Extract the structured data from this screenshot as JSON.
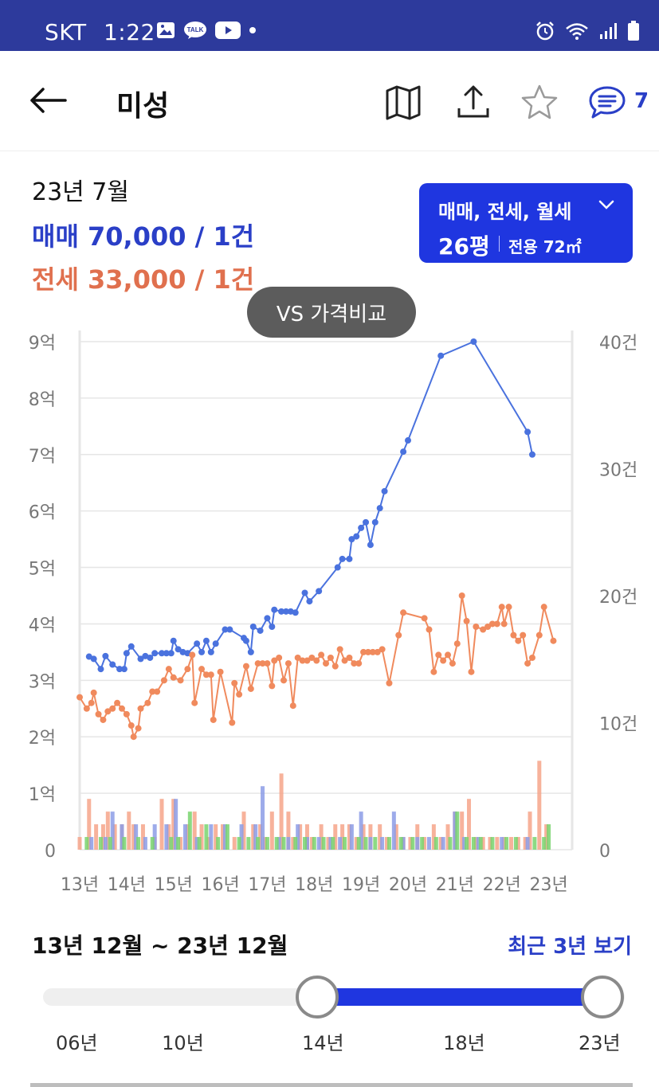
{
  "status_bar": {
    "carrier": "SKT",
    "time": "1:22"
  },
  "header": {
    "title": "미성",
    "comment_count": "7"
  },
  "summary": {
    "date": "23년 7월",
    "sale": "매매 70,000 / 1건",
    "lease": "전세 33,000 / 1건"
  },
  "type_selector": {
    "label": "매매, 전세, 월세",
    "size": "26평",
    "area": "전용 72㎡"
  },
  "vs_button": "VS 가격비교",
  "colors": {
    "sale": "#4a72de",
    "lease": "#f08a5d",
    "monthly": "#5cc85c",
    "accent": "#1f36e0",
    "statusbar": "#2d3a9c"
  },
  "chart_data": {
    "type": "line",
    "y_left_ticks": [
      "0",
      "1억",
      "2억",
      "3억",
      "4억",
      "5억",
      "6억",
      "7억",
      "8억",
      "9억"
    ],
    "y_right_ticks": [
      "0",
      "10건",
      "20건",
      "30건",
      "40건"
    ],
    "x_ticks": [
      "13년",
      "14년",
      "15년",
      "16년",
      "17년",
      "18년",
      "19년",
      "20년",
      "21년",
      "22년",
      "23년"
    ],
    "ylim_left": [
      0,
      90000
    ],
    "ylim_right": [
      0,
      40
    ],
    "xlim": [
      2013.0,
      2023.5
    ],
    "series": [
      {
        "name": "매매",
        "points": [
          [
            2013.2,
            34200
          ],
          [
            2013.3,
            33800
          ],
          [
            2013.45,
            32000
          ],
          [
            2013.55,
            34300
          ],
          [
            2013.7,
            32800
          ],
          [
            2013.85,
            32000
          ],
          [
            2013.95,
            32000
          ],
          [
            2014.0,
            34800
          ],
          [
            2014.1,
            36000
          ],
          [
            2014.3,
            33800
          ],
          [
            2014.4,
            34300
          ],
          [
            2014.5,
            34000
          ],
          [
            2014.6,
            34800
          ],
          [
            2014.75,
            34800
          ],
          [
            2014.85,
            34800
          ],
          [
            2014.95,
            34800
          ],
          [
            2015.0,
            37000
          ],
          [
            2015.1,
            35500
          ],
          [
            2015.2,
            35000
          ],
          [
            2015.3,
            34800
          ],
          [
            2015.5,
            36500
          ],
          [
            2015.6,
            35000
          ],
          [
            2015.7,
            37000
          ],
          [
            2015.8,
            35000
          ],
          [
            2015.9,
            36500
          ],
          [
            2016.1,
            39000
          ],
          [
            2016.2,
            39000
          ],
          [
            2016.5,
            37500
          ],
          [
            2016.55,
            37000
          ],
          [
            2016.65,
            35000
          ],
          [
            2016.7,
            39500
          ],
          [
            2016.85,
            38800
          ],
          [
            2017.0,
            41000
          ],
          [
            2017.1,
            39500
          ],
          [
            2017.15,
            42500
          ],
          [
            2017.3,
            42200
          ],
          [
            2017.4,
            42200
          ],
          [
            2017.5,
            42200
          ],
          [
            2017.6,
            42000
          ],
          [
            2017.8,
            45500
          ],
          [
            2017.9,
            44000
          ],
          [
            2018.1,
            45800
          ],
          [
            2018.5,
            50000
          ],
          [
            2018.6,
            51500
          ],
          [
            2018.75,
            51500
          ],
          [
            2018.8,
            55000
          ],
          [
            2018.9,
            55500
          ],
          [
            2019.0,
            57000
          ],
          [
            2019.1,
            58000
          ],
          [
            2019.2,
            54000
          ],
          [
            2019.3,
            58000
          ],
          [
            2019.4,
            60500
          ],
          [
            2019.5,
            63500
          ],
          [
            2019.9,
            70500
          ],
          [
            2020.0,
            72500
          ],
          [
            2020.7,
            87500
          ],
          [
            2021.4,
            90000
          ],
          [
            2022.55,
            74000
          ],
          [
            2022.65,
            70000
          ]
        ]
      },
      {
        "name": "전세",
        "points": [
          [
            2013.0,
            27000
          ],
          [
            2013.15,
            25000
          ],
          [
            2013.25,
            26000
          ],
          [
            2013.3,
            27800
          ],
          [
            2013.4,
            24000
          ],
          [
            2013.5,
            23000
          ],
          [
            2013.6,
            24500
          ],
          [
            2013.7,
            25000
          ],
          [
            2013.8,
            26000
          ],
          [
            2013.9,
            25000
          ],
          [
            2014.0,
            24000
          ],
          [
            2014.1,
            22000
          ],
          [
            2014.15,
            20000
          ],
          [
            2014.25,
            21500
          ],
          [
            2014.3,
            25000
          ],
          [
            2014.45,
            26000
          ],
          [
            2014.55,
            28000
          ],
          [
            2014.65,
            28000
          ],
          [
            2014.8,
            30000
          ],
          [
            2014.9,
            32000
          ],
          [
            2015.0,
            30500
          ],
          [
            2015.15,
            30000
          ],
          [
            2015.3,
            32000
          ],
          [
            2015.4,
            34500
          ],
          [
            2015.45,
            26000
          ],
          [
            2015.6,
            32000
          ],
          [
            2015.7,
            31000
          ],
          [
            2015.8,
            31000
          ],
          [
            2015.85,
            23000
          ],
          [
            2016.0,
            31500
          ],
          [
            2016.25,
            22500
          ],
          [
            2016.3,
            29500
          ],
          [
            2016.4,
            27500
          ],
          [
            2016.55,
            32500
          ],
          [
            2016.65,
            28500
          ],
          [
            2016.8,
            33000
          ],
          [
            2016.9,
            33000
          ],
          [
            2017.0,
            33000
          ],
          [
            2017.1,
            29000
          ],
          [
            2017.15,
            33500
          ],
          [
            2017.25,
            34000
          ],
          [
            2017.35,
            30000
          ],
          [
            2017.45,
            33000
          ],
          [
            2017.55,
            25500
          ],
          [
            2017.65,
            34000
          ],
          [
            2017.75,
            33500
          ],
          [
            2017.85,
            33500
          ],
          [
            2017.95,
            34000
          ],
          [
            2018.05,
            33500
          ],
          [
            2018.15,
            34500
          ],
          [
            2018.25,
            33000
          ],
          [
            2018.35,
            34000
          ],
          [
            2018.45,
            32500
          ],
          [
            2018.55,
            35500
          ],
          [
            2018.65,
            33500
          ],
          [
            2018.75,
            34000
          ],
          [
            2018.85,
            33000
          ],
          [
            2018.95,
            33000
          ],
          [
            2019.05,
            35000
          ],
          [
            2019.15,
            35000
          ],
          [
            2019.25,
            35000
          ],
          [
            2019.35,
            35000
          ],
          [
            2019.45,
            35500
          ],
          [
            2019.6,
            29500
          ],
          [
            2019.8,
            38000
          ],
          [
            2019.9,
            42000
          ],
          [
            2020.35,
            41000
          ],
          [
            2020.45,
            39000
          ],
          [
            2020.55,
            31500
          ],
          [
            2020.65,
            34500
          ],
          [
            2020.75,
            33500
          ],
          [
            2020.85,
            34500
          ],
          [
            2020.95,
            33000
          ],
          [
            2021.05,
            36500
          ],
          [
            2021.15,
            45000
          ],
          [
            2021.25,
            40500
          ],
          [
            2021.35,
            31500
          ],
          [
            2021.45,
            39500
          ],
          [
            2021.6,
            39000
          ],
          [
            2021.7,
            39500
          ],
          [
            2021.8,
            40000
          ],
          [
            2021.9,
            40000
          ],
          [
            2022.0,
            43000
          ],
          [
            2022.05,
            40000
          ],
          [
            2022.15,
            43000
          ],
          [
            2022.25,
            38000
          ],
          [
            2022.35,
            37000
          ],
          [
            2022.45,
            38000
          ],
          [
            2022.55,
            33000
          ],
          [
            2022.65,
            34000
          ],
          [
            2022.8,
            38000
          ],
          [
            2022.9,
            43000
          ],
          [
            2023.1,
            37000
          ]
        ]
      }
    ],
    "volume": {
      "name": "거래량",
      "lease_counts": [
        [
          2013.0,
          1
        ],
        [
          2013.2,
          4
        ],
        [
          2013.35,
          2
        ],
        [
          2013.5,
          2
        ],
        [
          2013.6,
          3
        ],
        [
          2013.75,
          2
        ],
        [
          2013.9,
          2
        ],
        [
          2014.05,
          3
        ],
        [
          2014.15,
          2
        ],
        [
          2014.35,
          2
        ],
        [
          2014.6,
          1
        ],
        [
          2014.75,
          4
        ],
        [
          2014.9,
          2
        ],
        [
          2015.0,
          4
        ],
        [
          2015.15,
          1
        ],
        [
          2015.3,
          2
        ],
        [
          2015.45,
          3
        ],
        [
          2015.6,
          2
        ],
        [
          2015.75,
          1
        ],
        [
          2015.9,
          2
        ],
        [
          2016.05,
          2
        ],
        [
          2016.3,
          1
        ],
        [
          2016.5,
          3
        ],
        [
          2016.7,
          2
        ],
        [
          2016.85,
          2
        ],
        [
          2016.95,
          1
        ],
        [
          2017.1,
          3
        ],
        [
          2017.3,
          6
        ],
        [
          2017.45,
          3
        ],
        [
          2017.55,
          1
        ],
        [
          2017.7,
          2
        ],
        [
          2017.85,
          2
        ],
        [
          2017.95,
          1
        ],
        [
          2018.15,
          2
        ],
        [
          2018.3,
          1
        ],
        [
          2018.45,
          2
        ],
        [
          2018.6,
          2
        ],
        [
          2018.75,
          2
        ],
        [
          2018.9,
          1
        ],
        [
          2019.05,
          2
        ],
        [
          2019.2,
          2
        ],
        [
          2019.4,
          2
        ],
        [
          2019.55,
          1
        ],
        [
          2019.75,
          2
        ],
        [
          2019.9,
          1
        ],
        [
          2020.05,
          1
        ],
        [
          2020.2,
          2
        ],
        [
          2020.35,
          1
        ],
        [
          2020.55,
          2
        ],
        [
          2020.7,
          1
        ],
        [
          2020.85,
          2
        ],
        [
          2021.0,
          3
        ],
        [
          2021.15,
          3
        ],
        [
          2021.3,
          4
        ],
        [
          2021.45,
          1
        ],
        [
          2021.6,
          1
        ],
        [
          2021.75,
          1
        ],
        [
          2021.9,
          1
        ],
        [
          2022.05,
          1
        ],
        [
          2022.2,
          1
        ],
        [
          2022.35,
          1
        ],
        [
          2022.5,
          1
        ],
        [
          2022.6,
          3
        ],
        [
          2022.8,
          7
        ],
        [
          2022.95,
          2
        ]
      ],
      "sale_counts": [
        [
          2013.25,
          1
        ],
        [
          2013.55,
          1
        ],
        [
          2013.7,
          3
        ],
        [
          2013.9,
          2
        ],
        [
          2014.2,
          2
        ],
        [
          2014.4,
          1
        ],
        [
          2014.6,
          2
        ],
        [
          2014.85,
          2
        ],
        [
          2015.05,
          4
        ],
        [
          2015.25,
          2
        ],
        [
          2015.5,
          1
        ],
        [
          2015.8,
          2
        ],
        [
          2016.1,
          2
        ],
        [
          2016.45,
          2
        ],
        [
          2016.75,
          2
        ],
        [
          2016.9,
          5
        ],
        [
          2017.25,
          1
        ],
        [
          2017.45,
          1
        ],
        [
          2017.65,
          2
        ],
        [
          2017.85,
          1
        ],
        [
          2018.1,
          1
        ],
        [
          2018.35,
          1
        ],
        [
          2018.55,
          1
        ],
        [
          2018.8,
          2
        ],
        [
          2019.0,
          3
        ],
        [
          2019.2,
          1
        ],
        [
          2019.45,
          1
        ],
        [
          2019.7,
          3
        ],
        [
          2019.9,
          1
        ],
        [
          2020.2,
          1
        ],
        [
          2020.45,
          1
        ],
        [
          2020.75,
          1
        ],
        [
          2021.0,
          3
        ],
        [
          2021.2,
          1
        ],
        [
          2021.5,
          1
        ],
        [
          2022.0,
          1
        ],
        [
          2022.55,
          1
        ]
      ],
      "monthly_counts": [
        [
          2013.15,
          1
        ],
        [
          2013.45,
          1
        ],
        [
          2013.65,
          1
        ],
        [
          2013.95,
          1
        ],
        [
          2014.25,
          1
        ],
        [
          2014.55,
          1
        ],
        [
          2014.95,
          1
        ],
        [
          2015.1,
          1
        ],
        [
          2015.35,
          3
        ],
        [
          2015.55,
          1
        ],
        [
          2015.7,
          2
        ],
        [
          2015.95,
          1
        ],
        [
          2016.15,
          2
        ],
        [
          2016.4,
          1
        ],
        [
          2016.6,
          1
        ],
        [
          2016.8,
          1
        ],
        [
          2017.0,
          1
        ],
        [
          2017.2,
          1
        ],
        [
          2017.35,
          1
        ],
        [
          2017.6,
          1
        ],
        [
          2017.8,
          1
        ],
        [
          2018.0,
          1
        ],
        [
          2018.2,
          1
        ],
        [
          2018.4,
          1
        ],
        [
          2018.65,
          1
        ],
        [
          2018.95,
          1
        ],
        [
          2019.1,
          1
        ],
        [
          2019.3,
          1
        ],
        [
          2019.6,
          1
        ],
        [
          2019.85,
          1
        ],
        [
          2020.1,
          1
        ],
        [
          2020.3,
          1
        ],
        [
          2020.6,
          1
        ],
        [
          2020.9,
          1
        ],
        [
          2021.05,
          3
        ],
        [
          2021.25,
          1
        ],
        [
          2021.4,
          1
        ],
        [
          2021.55,
          1
        ],
        [
          2021.8,
          1
        ],
        [
          2022.1,
          1
        ],
        [
          2022.3,
          1
        ],
        [
          2022.7,
          1
        ],
        [
          2022.9,
          1
        ],
        [
          2023.0,
          2
        ]
      ]
    }
  },
  "range": {
    "text": "13년 12월 ~ 23년 12월",
    "recent_label": "최근 3년 보기",
    "start_fraction": 0.471,
    "end_fraction": 1.0,
    "ticks": [
      "06년",
      "10년",
      "14년",
      "18년",
      "23년"
    ]
  }
}
